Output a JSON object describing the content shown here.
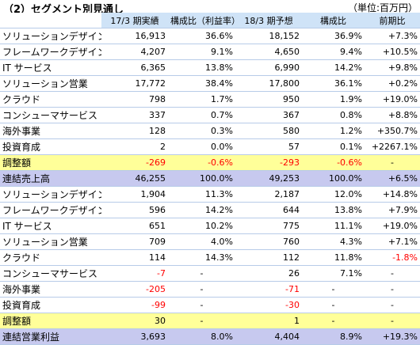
{
  "title": "（2）セグメント別見通し",
  "unit": "（単位:百万円）",
  "headers": [
    "",
    "17/3 期実績",
    "構成比（利益率）",
    "18/3 期予想",
    "構成比",
    "前期比"
  ],
  "sales_rows": [
    {
      "name": "ソリューションデザイン",
      "v": [
        "16,913",
        "36.6%",
        "18,152",
        "36.9%",
        "+7.3%"
      ],
      "neg": [
        false,
        false,
        false,
        false,
        false
      ]
    },
    {
      "name": "フレームワークデザイン",
      "v": [
        "4,207",
        "9.1%",
        "4,650",
        "9.4%",
        "+10.5%"
      ],
      "neg": [
        false,
        false,
        false,
        false,
        false
      ]
    },
    {
      "name": "IT サービス",
      "v": [
        "6,365",
        "13.8%",
        "6,990",
        "14.2%",
        "+9.8%"
      ],
      "neg": [
        false,
        false,
        false,
        false,
        false
      ]
    },
    {
      "name": "ソリューション営業",
      "v": [
        "17,772",
        "38.4%",
        "17,800",
        "36.1%",
        "+0.2%"
      ],
      "neg": [
        false,
        false,
        false,
        false,
        false
      ]
    },
    {
      "name": "クラウド",
      "v": [
        "798",
        "1.7%",
        "950",
        "1.9%",
        "+19.0%"
      ],
      "neg": [
        false,
        false,
        false,
        false,
        false
      ]
    },
    {
      "name": "コンシューマサービス",
      "v": [
        "337",
        "0.7%",
        "367",
        "0.8%",
        "+8.8%"
      ],
      "neg": [
        false,
        false,
        false,
        false,
        false
      ]
    },
    {
      "name": "海外事業",
      "v": [
        "128",
        "0.3%",
        "580",
        "1.2%",
        "+350.7%"
      ],
      "neg": [
        false,
        false,
        false,
        false,
        false
      ]
    },
    {
      "name": "投資育成",
      "v": [
        "2",
        "0.0%",
        "57",
        "0.1%",
        "+2267.1%"
      ],
      "neg": [
        false,
        false,
        false,
        false,
        false
      ]
    }
  ],
  "sales_adjust": {
    "name": "調整額",
    "v": [
      "-269",
      "-0.6%",
      "-293",
      "-0.6%",
      "-"
    ],
    "neg": [
      true,
      true,
      true,
      true,
      false
    ]
  },
  "sales_total": {
    "name": "連結売上高",
    "v": [
      "46,255",
      "100.0%",
      "49,253",
      "100.0%",
      "+6.5%"
    ],
    "neg": [
      false,
      false,
      false,
      false,
      false
    ]
  },
  "profit_rows": [
    {
      "name": "ソリューションデザイン",
      "v": [
        "1,904",
        "11.3%",
        "2,187",
        "12.0%",
        "+14.8%"
      ],
      "neg": [
        false,
        false,
        false,
        false,
        false
      ]
    },
    {
      "name": "フレームワークデザイン",
      "v": [
        "596",
        "14.2%",
        "644",
        "13.8%",
        "+7.9%"
      ],
      "neg": [
        false,
        false,
        false,
        false,
        false
      ]
    },
    {
      "name": "IT サービス",
      "v": [
        "651",
        "10.2%",
        "775",
        "11.1%",
        "+19.0%"
      ],
      "neg": [
        false,
        false,
        false,
        false,
        false
      ]
    },
    {
      "name": "ソリューション営業",
      "v": [
        "709",
        "4.0%",
        "760",
        "4.3%",
        "+7.1%"
      ],
      "neg": [
        false,
        false,
        false,
        false,
        false
      ]
    },
    {
      "name": "クラウド",
      "v": [
        "114",
        "14.3%",
        "112",
        "11.8%",
        "-1.8%"
      ],
      "neg": [
        false,
        false,
        false,
        false,
        true
      ]
    },
    {
      "name": "コンシューマサービス",
      "v": [
        "-7",
        "-",
        "26",
        "7.1%",
        "-"
      ],
      "neg": [
        true,
        false,
        false,
        false,
        false
      ]
    },
    {
      "name": "海外事業",
      "v": [
        "-205",
        "-",
        "-71",
        "-",
        "-"
      ],
      "neg": [
        true,
        false,
        true,
        false,
        false
      ]
    },
    {
      "name": "投資育成",
      "v": [
        "-99",
        "-",
        "-30",
        "-",
        "-"
      ],
      "neg": [
        true,
        false,
        true,
        false,
        false
      ]
    }
  ],
  "profit_adjust": {
    "name": "調整額",
    "v": [
      "30",
      "-",
      "1",
      "-",
      "-"
    ],
    "neg": [
      false,
      false,
      false,
      false,
      false
    ]
  },
  "profit_total": {
    "name": "連結営業利益",
    "v": [
      "3,693",
      "8.0%",
      "4,404",
      "8.9%",
      "+19.3%"
    ],
    "neg": [
      false,
      false,
      false,
      false,
      false
    ]
  }
}
